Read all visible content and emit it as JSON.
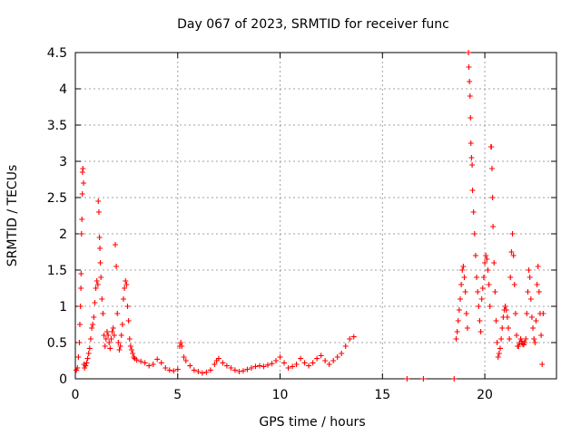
{
  "chart_data": {
    "type": "scatter",
    "title": "Day 067 of 2023, SRMTID for receiver func",
    "xlabel": "GPS time / hours",
    "ylabel": "SRMTID / TECUs",
    "xlim": [
      0,
      23.5
    ],
    "ylim": [
      0,
      4.5
    ],
    "xticks": [
      0,
      5,
      10,
      15,
      20
    ],
    "yticks": [
      0,
      0.5,
      1,
      1.5,
      2,
      2.5,
      3,
      3.5,
      4,
      4.5
    ],
    "xtick_labels": [
      "0",
      "5",
      "10",
      "15",
      "20"
    ],
    "ytick_labels": [
      "0",
      "0.5",
      "1",
      "1.5",
      "2",
      "2.5",
      "3",
      "3.5",
      "4",
      "4.5"
    ],
    "grid": true,
    "marker": "+",
    "color": "#ff0000",
    "series": [
      {
        "name": "SRMTID",
        "points": [
          [
            0.05,
            0.12
          ],
          [
            0.1,
            0.15
          ],
          [
            0.15,
            0.3
          ],
          [
            0.2,
            0.5
          ],
          [
            0.22,
            0.75
          ],
          [
            0.25,
            1.0
          ],
          [
            0.27,
            1.25
          ],
          [
            0.28,
            1.45
          ],
          [
            0.3,
            2.0
          ],
          [
            0.32,
            2.2
          ],
          [
            0.34,
            2.55
          ],
          [
            0.35,
            2.85
          ],
          [
            0.37,
            2.9
          ],
          [
            0.4,
            2.7
          ],
          [
            0.42,
            0.2
          ],
          [
            0.45,
            0.15
          ],
          [
            0.5,
            0.18
          ],
          [
            0.55,
            0.22
          ],
          [
            0.6,
            0.28
          ],
          [
            0.65,
            0.35
          ],
          [
            0.7,
            0.42
          ],
          [
            0.75,
            0.55
          ],
          [
            0.8,
            0.7
          ],
          [
            0.85,
            0.75
          ],
          [
            0.9,
            0.85
          ],
          [
            0.95,
            1.05
          ],
          [
            1.0,
            1.25
          ],
          [
            1.05,
            1.35
          ],
          [
            1.1,
            1.3
          ],
          [
            1.12,
            2.45
          ],
          [
            1.15,
            2.3
          ],
          [
            1.18,
            1.95
          ],
          [
            1.2,
            1.8
          ],
          [
            1.22,
            1.6
          ],
          [
            1.25,
            1.4
          ],
          [
            1.3,
            1.1
          ],
          [
            1.35,
            0.9
          ],
          [
            1.4,
            0.6
          ],
          [
            1.45,
            0.45
          ],
          [
            1.5,
            0.55
          ],
          [
            1.55,
            0.65
          ],
          [
            1.6,
            0.6
          ],
          [
            1.65,
            0.5
          ],
          [
            1.7,
            0.42
          ],
          [
            1.75,
            0.55
          ],
          [
            1.8,
            0.65
          ],
          [
            1.85,
            0.7
          ],
          [
            1.9,
            0.6
          ],
          [
            1.95,
            1.85
          ],
          [
            2.0,
            1.55
          ],
          [
            2.05,
            0.9
          ],
          [
            2.1,
            0.5
          ],
          [
            2.15,
            0.4
          ],
          [
            2.2,
            0.45
          ],
          [
            2.25,
            0.6
          ],
          [
            2.3,
            0.75
          ],
          [
            2.35,
            1.1
          ],
          [
            2.4,
            1.25
          ],
          [
            2.45,
            1.35
          ],
          [
            2.5,
            1.3
          ],
          [
            2.55,
            1.0
          ],
          [
            2.6,
            0.8
          ],
          [
            2.65,
            0.55
          ],
          [
            2.7,
            0.45
          ],
          [
            2.75,
            0.4
          ],
          [
            2.8,
            0.35
          ],
          [
            2.85,
            0.3
          ],
          [
            2.9,
            0.28
          ],
          [
            3.0,
            0.26
          ],
          [
            3.2,
            0.24
          ],
          [
            3.4,
            0.22
          ],
          [
            3.6,
            0.18
          ],
          [
            3.8,
            0.2
          ],
          [
            4.0,
            0.27
          ],
          [
            4.2,
            0.22
          ],
          [
            4.4,
            0.15
          ],
          [
            4.6,
            0.12
          ],
          [
            4.8,
            0.11
          ],
          [
            5.0,
            0.13
          ],
          [
            5.1,
            0.45
          ],
          [
            5.15,
            0.5
          ],
          [
            5.2,
            0.45
          ],
          [
            5.3,
            0.3
          ],
          [
            5.4,
            0.25
          ],
          [
            5.6,
            0.18
          ],
          [
            5.8,
            0.12
          ],
          [
            6.0,
            0.1
          ],
          [
            6.2,
            0.08
          ],
          [
            6.4,
            0.09
          ],
          [
            6.6,
            0.12
          ],
          [
            6.8,
            0.2
          ],
          [
            6.9,
            0.25
          ],
          [
            7.0,
            0.28
          ],
          [
            7.2,
            0.22
          ],
          [
            7.4,
            0.18
          ],
          [
            7.6,
            0.15
          ],
          [
            7.8,
            0.12
          ],
          [
            8.0,
            0.1
          ],
          [
            8.2,
            0.11
          ],
          [
            8.4,
            0.13
          ],
          [
            8.6,
            0.15
          ],
          [
            8.8,
            0.17
          ],
          [
            9.0,
            0.18
          ],
          [
            9.2,
            0.17
          ],
          [
            9.4,
            0.19
          ],
          [
            9.6,
            0.21
          ],
          [
            9.8,
            0.25
          ],
          [
            10.0,
            0.3
          ],
          [
            10.2,
            0.22
          ],
          [
            10.4,
            0.15
          ],
          [
            10.6,
            0.17
          ],
          [
            10.8,
            0.2
          ],
          [
            11.0,
            0.28
          ],
          [
            11.2,
            0.22
          ],
          [
            11.4,
            0.18
          ],
          [
            11.6,
            0.22
          ],
          [
            11.8,
            0.28
          ],
          [
            12.0,
            0.32
          ],
          [
            12.2,
            0.25
          ],
          [
            12.4,
            0.2
          ],
          [
            12.6,
            0.25
          ],
          [
            12.8,
            0.3
          ],
          [
            13.0,
            0.35
          ],
          [
            13.2,
            0.45
          ],
          [
            13.4,
            0.55
          ],
          [
            13.6,
            0.58
          ],
          [
            16.2,
            0.0
          ],
          [
            17.0,
            0.0
          ],
          [
            18.5,
            0.0
          ],
          [
            18.6,
            0.55
          ],
          [
            18.65,
            0.65
          ],
          [
            18.7,
            0.8
          ],
          [
            18.75,
            0.95
          ],
          [
            18.8,
            1.1
          ],
          [
            18.85,
            1.3
          ],
          [
            18.9,
            1.5
          ],
          [
            18.95,
            1.55
          ],
          [
            19.0,
            1.4
          ],
          [
            19.05,
            1.2
          ],
          [
            19.1,
            0.9
          ],
          [
            19.15,
            0.7
          ],
          [
            19.2,
            4.5
          ],
          [
            19.22,
            4.3
          ],
          [
            19.25,
            4.1
          ],
          [
            19.28,
            3.9
          ],
          [
            19.3,
            3.6
          ],
          [
            19.32,
            3.25
          ],
          [
            19.35,
            3.05
          ],
          [
            19.38,
            2.95
          ],
          [
            19.4,
            2.6
          ],
          [
            19.45,
            2.3
          ],
          [
            19.5,
            2.0
          ],
          [
            19.55,
            1.7
          ],
          [
            19.6,
            1.4
          ],
          [
            19.65,
            1.2
          ],
          [
            19.7,
            1.0
          ],
          [
            19.75,
            0.8
          ],
          [
            19.8,
            0.65
          ],
          [
            19.85,
            1.1
          ],
          [
            19.9,
            1.25
          ],
          [
            19.95,
            1.4
          ],
          [
            20.0,
            1.6
          ],
          [
            20.05,
            1.7
          ],
          [
            20.1,
            1.65
          ],
          [
            20.15,
            1.5
          ],
          [
            20.2,
            1.3
          ],
          [
            20.25,
            1.0
          ],
          [
            20.3,
            3.2
          ],
          [
            20.32,
            3.2
          ],
          [
            20.35,
            2.9
          ],
          [
            20.38,
            2.5
          ],
          [
            20.4,
            2.1
          ],
          [
            20.45,
            1.6
          ],
          [
            20.5,
            1.2
          ],
          [
            20.55,
            0.8
          ],
          [
            20.6,
            0.5
          ],
          [
            20.65,
            0.3
          ],
          [
            20.7,
            0.35
          ],
          [
            20.75,
            0.42
          ],
          [
            20.8,
            0.55
          ],
          [
            20.85,
            0.7
          ],
          [
            20.9,
            0.85
          ],
          [
            20.95,
            0.95
          ],
          [
            21.0,
            1.0
          ],
          [
            21.05,
            0.95
          ],
          [
            21.1,
            0.85
          ],
          [
            21.15,
            0.7
          ],
          [
            21.2,
            0.55
          ],
          [
            21.25,
            1.4
          ],
          [
            21.3,
            1.75
          ],
          [
            21.35,
            2.0
          ],
          [
            21.4,
            1.7
          ],
          [
            21.45,
            1.3
          ],
          [
            21.5,
            0.9
          ],
          [
            21.55,
            0.6
          ],
          [
            21.6,
            0.45
          ],
          [
            21.65,
            0.45
          ],
          [
            21.7,
            0.5
          ],
          [
            21.75,
            0.55
          ],
          [
            21.8,
            0.52
          ],
          [
            21.85,
            0.48
          ],
          [
            21.9,
            0.47
          ],
          [
            21.95,
            0.5
          ],
          [
            22.0,
            0.55
          ],
          [
            22.05,
            0.9
          ],
          [
            22.1,
            1.2
          ],
          [
            22.15,
            1.5
          ],
          [
            22.2,
            1.4
          ],
          [
            22.25,
            1.1
          ],
          [
            22.3,
            0.85
          ],
          [
            22.35,
            0.7
          ],
          [
            22.4,
            0.55
          ],
          [
            22.45,
            0.5
          ],
          [
            22.5,
            0.8
          ],
          [
            22.55,
            1.3
          ],
          [
            22.6,
            1.55
          ],
          [
            22.65,
            1.2
          ],
          [
            22.7,
            0.9
          ],
          [
            22.75,
            0.6
          ],
          [
            22.8,
            0.2
          ],
          [
            22.85,
            0.9
          ]
        ]
      }
    ]
  }
}
